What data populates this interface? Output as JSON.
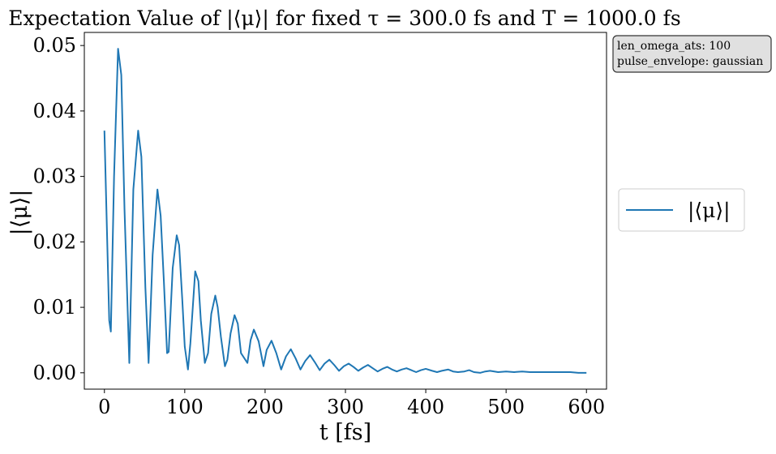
{
  "chart_data": {
    "type": "line",
    "title": "Expectation Value of |⟨μ⟩| for fixed τ = 300.0 fs and T = 1000.0 fs",
    "xlabel": "t [fs]",
    "ylabel": "|⟨μ⟩|",
    "xlim": [
      -25,
      625
    ],
    "ylim": [
      -0.0025,
      0.052
    ],
    "xticks": [
      0,
      100,
      200,
      300,
      400,
      500,
      600
    ],
    "yticks": [
      0.0,
      0.01,
      0.02,
      0.03,
      0.04,
      0.05
    ],
    "xtick_labels": [
      "0",
      "100",
      "200",
      "300",
      "400",
      "500",
      "600"
    ],
    "ytick_labels": [
      "0.00",
      "0.01",
      "0.02",
      "0.03",
      "0.04",
      "0.05"
    ],
    "grid": false,
    "legend_position": "right",
    "series": [
      {
        "name": "|⟨μ⟩|",
        "color": "#1f77b4",
        "x": [
          0,
          6,
          8,
          12,
          17,
          21,
          25,
          31,
          36,
          42,
          46,
          51,
          55,
          60,
          66,
          70,
          74,
          78,
          80,
          85,
          90,
          93,
          97,
          100,
          104,
          107,
          113,
          117,
          120,
          125,
          129,
          133,
          138,
          141,
          145,
          150,
          153,
          157,
          162,
          166,
          170,
          178,
          182,
          186,
          192,
          198,
          202,
          208,
          214,
          220,
          226,
          232,
          238,
          244,
          250,
          256,
          262,
          268,
          274,
          280,
          286,
          292,
          298,
          304,
          310,
          316,
          322,
          328,
          334,
          340,
          346,
          352,
          358,
          364,
          370,
          376,
          382,
          388,
          394,
          400,
          408,
          414,
          420,
          428,
          434,
          440,
          448,
          454,
          460,
          468,
          474,
          480,
          490,
          500,
          510,
          520,
          530,
          540,
          550,
          560,
          570,
          580,
          590,
          600
        ],
        "y": [
          0.037,
          0.008,
          0.0063,
          0.03,
          0.0495,
          0.0455,
          0.025,
          0.0015,
          0.028,
          0.037,
          0.033,
          0.013,
          0.0015,
          0.018,
          0.028,
          0.024,
          0.014,
          0.003,
          0.0032,
          0.016,
          0.021,
          0.0195,
          0.011,
          0.004,
          0.0005,
          0.0045,
          0.0155,
          0.014,
          0.008,
          0.0015,
          0.003,
          0.009,
          0.0118,
          0.01,
          0.0055,
          0.001,
          0.002,
          0.006,
          0.0088,
          0.0075,
          0.003,
          0.0015,
          0.005,
          0.0066,
          0.0048,
          0.001,
          0.0035,
          0.0049,
          0.003,
          0.0005,
          0.0025,
          0.0036,
          0.0022,
          0.0005,
          0.0018,
          0.0027,
          0.0016,
          0.0004,
          0.0014,
          0.002,
          0.0012,
          0.0003,
          0.001,
          0.0014,
          0.0009,
          0.0003,
          0.0008,
          0.0012,
          0.0007,
          0.0002,
          0.0006,
          0.0009,
          0.0005,
          0.0002,
          0.0005,
          0.0007,
          0.0004,
          0.0001,
          0.0004,
          0.0006,
          0.0003,
          0.0001,
          0.0003,
          0.0005,
          0.0002,
          0.0001,
          0.0002,
          0.0004,
          0.0001,
          0.0,
          0.0002,
          0.0003,
          0.0001,
          0.0002,
          0.0001,
          0.0002,
          0.0001,
          0.0001,
          0.0001,
          0.0001,
          0.0001,
          0.0001,
          0.0,
          0.0
        ]
      }
    ]
  },
  "info_box": {
    "line1": "len_omega_ats: 100",
    "line2": "pulse_envelope: gaussian"
  }
}
